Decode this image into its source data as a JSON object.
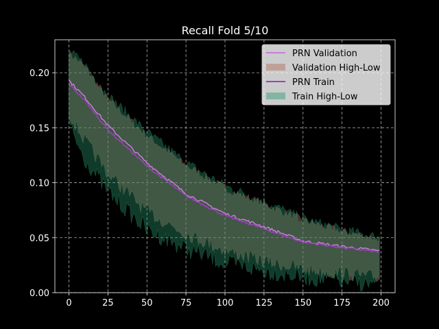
{
  "chart_data": {
    "type": "line",
    "title": "Recall Fold 5/10",
    "xlabel": "",
    "ylabel": "",
    "xlim": [
      -9,
      209
    ],
    "ylim": [
      0.0,
      0.23
    ],
    "xticks": [
      0,
      25,
      50,
      75,
      100,
      125,
      150,
      175,
      200
    ],
    "xtick_labels": [
      "0",
      "25",
      "50",
      "75",
      "100",
      "125",
      "150",
      "175",
      "200"
    ],
    "yticks": [
      0.0,
      0.05,
      0.1,
      0.15,
      0.2
    ],
    "ytick_labels": [
      "0.00",
      "0.05",
      "0.10",
      "0.15",
      "0.20"
    ],
    "grid": true,
    "legend_position": "top-right",
    "background": "#000000",
    "x_range": [
      0,
      199
    ],
    "series": [
      {
        "name": "PRN Validation",
        "kind": "line",
        "color": "#c77ddb",
        "anchors": [
          [
            0,
            0.193
          ],
          [
            10,
            0.178
          ],
          [
            25,
            0.152
          ],
          [
            50,
            0.118
          ],
          [
            75,
            0.09
          ],
          [
            100,
            0.072
          ],
          [
            125,
            0.06
          ],
          [
            150,
            0.047
          ],
          [
            175,
            0.042
          ],
          [
            199,
            0.038
          ]
        ]
      },
      {
        "name": "Validation High-Low",
        "kind": "band",
        "color": "#b06a5a",
        "upper_anchors": [
          [
            0,
            0.217
          ],
          [
            10,
            0.205
          ],
          [
            25,
            0.175
          ],
          [
            50,
            0.142
          ],
          [
            75,
            0.115
          ],
          [
            100,
            0.094
          ],
          [
            125,
            0.08
          ],
          [
            150,
            0.065
          ],
          [
            175,
            0.055
          ],
          [
            199,
            0.048
          ]
        ],
        "lower_anchors": [
          [
            0,
            0.17
          ],
          [
            10,
            0.145
          ],
          [
            25,
            0.115
          ],
          [
            50,
            0.08
          ],
          [
            75,
            0.06
          ],
          [
            100,
            0.045
          ],
          [
            125,
            0.035
          ],
          [
            150,
            0.028
          ],
          [
            175,
            0.024
          ],
          [
            199,
            0.02
          ]
        ]
      },
      {
        "name": "PRN Train",
        "kind": "line",
        "color": "#a040c0",
        "anchors": [
          [
            0,
            0.19
          ],
          [
            10,
            0.175
          ],
          [
            25,
            0.148
          ],
          [
            50,
            0.115
          ],
          [
            75,
            0.088
          ],
          [
            100,
            0.07
          ],
          [
            125,
            0.058
          ],
          [
            150,
            0.046
          ],
          [
            175,
            0.041
          ],
          [
            199,
            0.037
          ]
        ]
      },
      {
        "name": "Train High-Low",
        "kind": "band",
        "color": "#2a9a70",
        "upper_anchors": [
          [
            0,
            0.218
          ],
          [
            10,
            0.207
          ],
          [
            25,
            0.178
          ],
          [
            50,
            0.145
          ],
          [
            75,
            0.117
          ],
          [
            100,
            0.096
          ],
          [
            125,
            0.082
          ],
          [
            150,
            0.066
          ],
          [
            175,
            0.056
          ],
          [
            199,
            0.049
          ]
        ],
        "lower_anchors": [
          [
            0,
            0.16
          ],
          [
            10,
            0.13
          ],
          [
            25,
            0.1
          ],
          [
            50,
            0.065
          ],
          [
            75,
            0.048
          ],
          [
            100,
            0.035
          ],
          [
            125,
            0.028
          ],
          [
            150,
            0.022
          ],
          [
            175,
            0.018
          ],
          [
            199,
            0.015
          ]
        ]
      }
    ]
  }
}
